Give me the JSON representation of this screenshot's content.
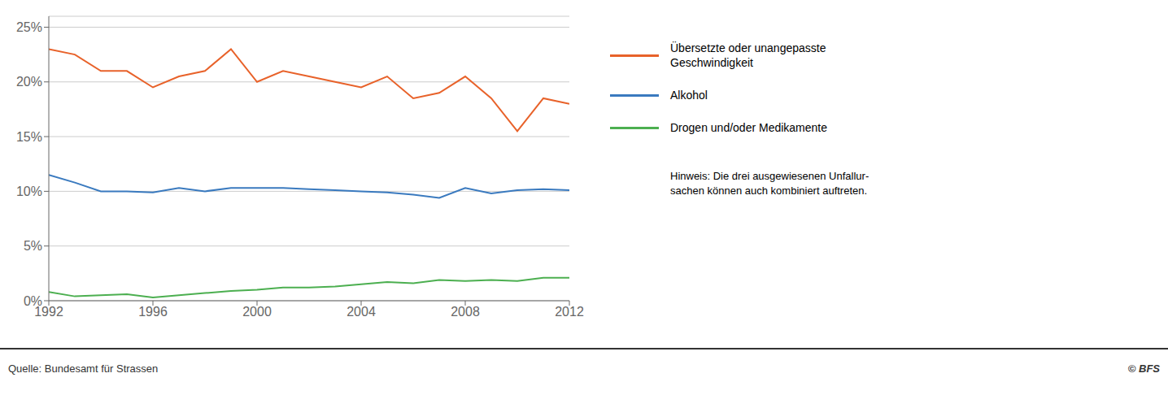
{
  "chart_data": {
    "type": "line",
    "x": [
      1992,
      1993,
      1994,
      1995,
      1996,
      1997,
      1998,
      1999,
      2000,
      2001,
      2002,
      2003,
      2004,
      2005,
      2006,
      2007,
      2008,
      2009,
      2010,
      2011,
      2012
    ],
    "series": [
      {
        "name": "Übersetzte oder unangepasste Geschwindigkeit",
        "color": "#E8622A",
        "values": [
          0.23,
          0.225,
          0.21,
          0.21,
          0.195,
          0.205,
          0.21,
          0.23,
          0.2,
          0.21,
          0.205,
          0.2,
          0.195,
          0.205,
          0.185,
          0.19,
          0.205,
          0.185,
          0.155,
          0.185,
          0.18
        ]
      },
      {
        "name": "Alkohol",
        "color": "#3A7ABF",
        "values": [
          0.115,
          0.108,
          0.1,
          0.1,
          0.099,
          0.103,
          0.1,
          0.103,
          0.103,
          0.103,
          0.102,
          0.101,
          0.1,
          0.099,
          0.097,
          0.094,
          0.103,
          0.098,
          0.101,
          0.102,
          0.101
        ]
      },
      {
        "name": "Drogen und/oder Medikamente",
        "color": "#4CAF50",
        "values": [
          0.008,
          0.004,
          0.005,
          0.006,
          0.003,
          0.005,
          0.007,
          0.009,
          0.01,
          0.012,
          0.012,
          0.013,
          0.015,
          0.017,
          0.016,
          0.019,
          0.018,
          0.019,
          0.018,
          0.021,
          0.021
        ]
      }
    ],
    "xlim": [
      1992,
      2012
    ],
    "xticks": [
      1992,
      1996,
      2000,
      2004,
      2008,
      2012
    ],
    "ylim": [
      0,
      0.26
    ],
    "yticks": [
      {
        "value": 0,
        "label": "0%"
      },
      {
        "value": 0.05,
        "label": "5%"
      },
      {
        "value": 0.1,
        "label": "10%"
      },
      {
        "value": 0.15,
        "label": "15%"
      },
      {
        "value": 0.2,
        "label": "20%"
      },
      {
        "value": 0.25,
        "label": "25%"
      }
    ],
    "grid": true,
    "legend": "right",
    "annotations": [
      "Hinweis: Die drei ausgewiesenen Unfallur-",
      "sachen können auch kombiniert auftreten."
    ],
    "source": [
      "Quelle: Bundesamt für Strassen",
      "© BFS"
    ]
  }
}
